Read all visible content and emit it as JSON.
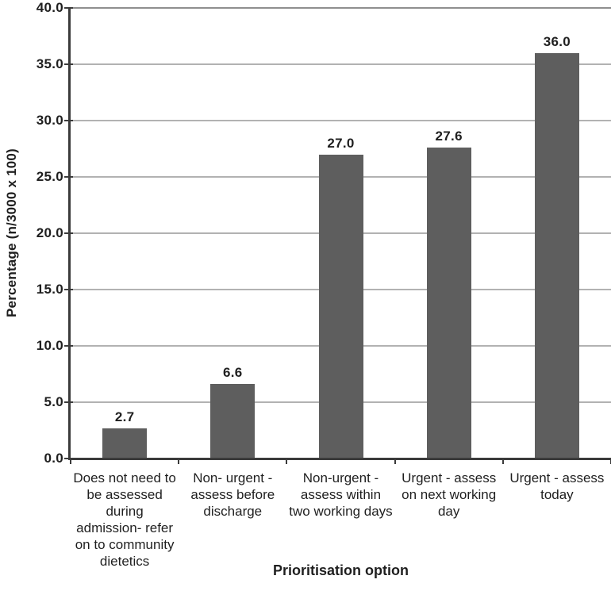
{
  "figure": {
    "background": "#ffffff",
    "bar_color": "#5e5e5e",
    "gridline_color": "#b2b2b2",
    "plot_top_border_color": "#8f8f8f",
    "axis_color": "#3b3b3b",
    "text_color": "#1f1f1f"
  },
  "chart_data": {
    "type": "bar",
    "title": "",
    "xlabel": "Prioritisation option",
    "ylabel": "Percentage (n/3000 x 100)",
    "categories": [
      "Does not need to\nbe assessed\nduring\nadmission- refer\non to community\ndietetics",
      "Non- urgent -\nassess before\ndischarge",
      "Non-urgent -\nassess within\ntwo working days",
      "Urgent - assess\non next working\nday",
      "Urgent - assess\ntoday"
    ],
    "values": [
      2.7,
      6.6,
      27.0,
      27.6,
      36.0
    ],
    "data_labels": [
      "2.7",
      "6.6",
      "27.0",
      "27.6",
      "36.0"
    ],
    "ylim": [
      0,
      40
    ],
    "yticks": [
      0,
      5,
      10,
      15,
      20,
      25,
      30,
      35,
      40
    ],
    "ytick_labels": [
      "0.0",
      "5.0",
      "10.0",
      "15.0",
      "20.0",
      "25.0",
      "30.0",
      "35.0",
      "40.0"
    ],
    "grid": true,
    "legend": false,
    "legend_position": "none"
  }
}
